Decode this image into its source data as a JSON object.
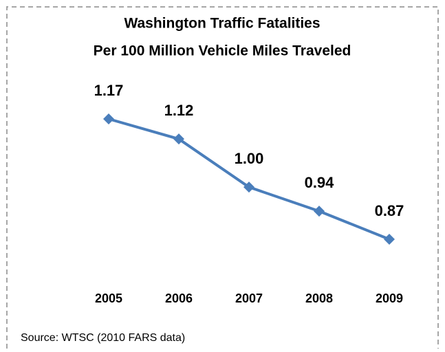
{
  "chart_data": {
    "type": "line",
    "title": "Washington Traffic Fatalities",
    "subtitle": "Per 100 Million Vehicle Miles Traveled",
    "source": "Source:  WTSC (2010 FARS data)",
    "categories": [
      "2005",
      "2006",
      "2007",
      "2008",
      "2009"
    ],
    "series": [
      {
        "color": "#4a7ebb",
        "values": [
          1.17,
          1.12,
          1.0,
          0.94,
          0.87
        ],
        "value_labels": [
          "1.17",
          "1.12",
          "1.00",
          "0.94",
          "0.87"
        ]
      }
    ]
  }
}
